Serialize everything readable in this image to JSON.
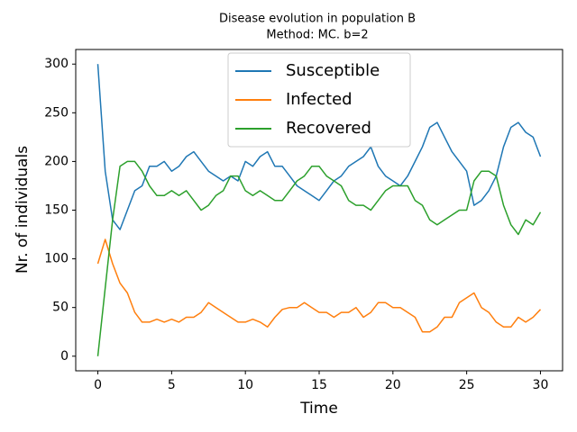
{
  "chart_data": {
    "type": "line",
    "title": "Disease evolution in population B",
    "subtitle": "Method: MC. b=2",
    "x_label": "Time",
    "y_label": "Nr. of individuals",
    "x": [
      0,
      0.5,
      1,
      1.5,
      2,
      2.5,
      3,
      3.5,
      4,
      4.5,
      5,
      5.5,
      6,
      6.5,
      7,
      7.5,
      8,
      8.5,
      9,
      9.5,
      10,
      10.5,
      11,
      11.5,
      12,
      12.5,
      13,
      13.5,
      14,
      14.5,
      15,
      15.5,
      16,
      16.5,
      17,
      17.5,
      18,
      18.5,
      19,
      19.5,
      20,
      20.5,
      21,
      21.5,
      22,
      22.5,
      23,
      23.5,
      24,
      24.5,
      25,
      25.5,
      26,
      26.5,
      27,
      27.5,
      28,
      28.5,
      29,
      29.5,
      30
    ],
    "series": [
      {
        "name": "Susceptible",
        "color": "#1f77b4",
        "values": [
          300,
          190,
          140,
          130,
          150,
          170,
          175,
          195,
          195,
          200,
          190,
          195,
          205,
          210,
          200,
          190,
          185,
          180,
          185,
          180,
          200,
          195,
          205,
          210,
          195,
          195,
          185,
          175,
          170,
          165,
          160,
          170,
          180,
          185,
          195,
          200,
          205,
          215,
          195,
          185,
          180,
          175,
          185,
          200,
          215,
          235,
          240,
          225,
          210,
          200,
          190,
          155,
          160,
          170,
          185,
          215,
          235,
          240,
          230,
          225,
          205
        ]
      },
      {
        "name": "Infected",
        "color": "#ff7f0e",
        "values": [
          95,
          120,
          95,
          75,
          65,
          45,
          35,
          35,
          38,
          35,
          38,
          35,
          40,
          40,
          45,
          55,
          50,
          45,
          40,
          35,
          35,
          38,
          35,
          30,
          40,
          48,
          50,
          50,
          55,
          50,
          45,
          45,
          40,
          45,
          45,
          50,
          40,
          45,
          55,
          55,
          50,
          50,
          45,
          40,
          25,
          25,
          30,
          40,
          40,
          55,
          60,
          65,
          50,
          45,
          35,
          30,
          30,
          40,
          35,
          40,
          48
        ]
      },
      {
        "name": "Recovered",
        "color": "#2ca02c",
        "values": [
          0,
          70,
          140,
          195,
          200,
          200,
          190,
          175,
          165,
          165,
          170,
          165,
          170,
          160,
          150,
          155,
          165,
          170,
          185,
          185,
          170,
          165,
          170,
          165,
          160,
          160,
          170,
          180,
          185,
          195,
          195,
          185,
          180,
          175,
          160,
          155,
          155,
          150,
          160,
          170,
          175,
          175,
          175,
          160,
          155,
          140,
          135,
          140,
          145,
          150,
          150,
          180,
          190,
          190,
          185,
          155,
          135,
          125,
          140,
          135,
          148
        ]
      }
    ],
    "xlim": [
      -1.5,
      31.5
    ],
    "ylim": [
      -15,
      315
    ],
    "xticks": [
      0,
      5,
      10,
      15,
      20,
      25,
      30
    ],
    "yticks": [
      0,
      50,
      100,
      150,
      200,
      250,
      300
    ],
    "legend": "upper center"
  }
}
